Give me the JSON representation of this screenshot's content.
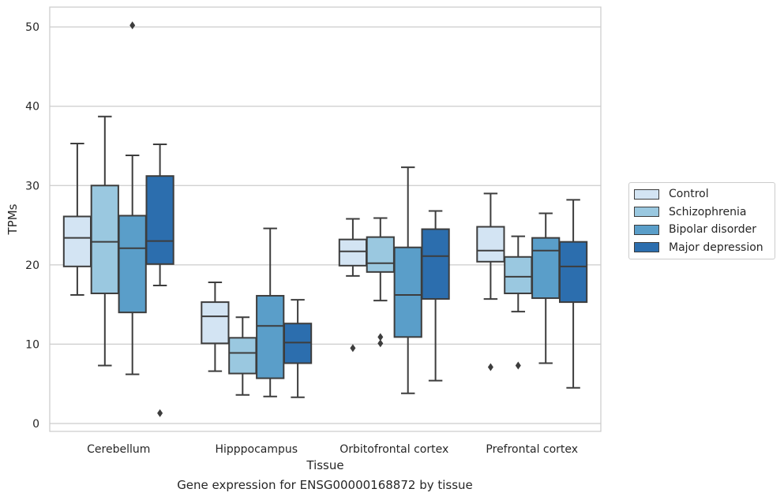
{
  "chart_data": {
    "type": "box",
    "title": "",
    "caption": "Gene expression for ENSG00000168872 by tissue",
    "xlabel": "Tissue",
    "ylabel": "TPMs",
    "ylim": [
      -1,
      52.5
    ],
    "yticks": [
      0,
      10,
      20,
      30,
      40,
      50
    ],
    "grid": "horizontal",
    "legend_placement": "outside-right",
    "categories": [
      "Cerebellum",
      "Hipppocampus",
      "Orbitofrontal cortex",
      "Prefrontal cortex"
    ],
    "series": [
      {
        "name": "Control",
        "color": "#d3e4f3",
        "boxes": [
          {
            "whislo": 16.2,
            "q1": 19.8,
            "med": 23.4,
            "q3": 26.1,
            "whishi": 35.3,
            "fliers": []
          },
          {
            "whislo": 6.6,
            "q1": 10.1,
            "med": 13.5,
            "q3": 15.3,
            "whishi": 17.8,
            "fliers": []
          },
          {
            "whislo": 18.6,
            "q1": 19.9,
            "med": 21.7,
            "q3": 23.2,
            "whishi": 25.8,
            "fliers": [
              9.5
            ]
          },
          {
            "whislo": 15.7,
            "q1": 20.4,
            "med": 21.8,
            "q3": 24.8,
            "whishi": 29.0,
            "fliers": [
              7.1
            ]
          }
        ]
      },
      {
        "name": "Schizophrenia",
        "color": "#9ac8e0",
        "boxes": [
          {
            "whislo": 7.3,
            "q1": 16.4,
            "med": 22.9,
            "q3": 30.0,
            "whishi": 38.7,
            "fliers": []
          },
          {
            "whislo": 3.6,
            "q1": 6.3,
            "med": 8.9,
            "q3": 10.8,
            "whishi": 13.4,
            "fliers": []
          },
          {
            "whislo": 15.5,
            "q1": 19.1,
            "med": 20.2,
            "q3": 23.5,
            "whishi": 25.9,
            "fliers": [
              10.1,
              10.9
            ]
          },
          {
            "whislo": 14.1,
            "q1": 16.4,
            "med": 18.5,
            "q3": 21.0,
            "whishi": 23.6,
            "fliers": [
              7.3
            ]
          }
        ]
      },
      {
        "name": "Bipolar disorder",
        "color": "#5a9ec9",
        "boxes": [
          {
            "whislo": 6.2,
            "q1": 14.0,
            "med": 22.1,
            "q3": 26.2,
            "whishi": 33.8,
            "fliers": [
              50.2
            ]
          },
          {
            "whislo": 3.4,
            "q1": 5.7,
            "med": 12.3,
            "q3": 16.1,
            "whishi": 24.6,
            "fliers": []
          },
          {
            "whislo": 3.8,
            "q1": 10.9,
            "med": 16.2,
            "q3": 22.2,
            "whishi": 32.3,
            "fliers": []
          },
          {
            "whislo": 7.6,
            "q1": 15.8,
            "med": 21.8,
            "q3": 23.4,
            "whishi": 26.5,
            "fliers": []
          }
        ]
      },
      {
        "name": "Major depression",
        "color": "#2c6eae",
        "boxes": [
          {
            "whislo": 17.4,
            "q1": 20.1,
            "med": 23.0,
            "q3": 31.2,
            "whishi": 35.2,
            "fliers": [
              1.3
            ]
          },
          {
            "whislo": 3.3,
            "q1": 7.6,
            "med": 10.2,
            "q3": 12.6,
            "whishi": 15.6,
            "fliers": []
          },
          {
            "whislo": 5.4,
            "q1": 15.7,
            "med": 21.1,
            "q3": 24.5,
            "whishi": 26.8,
            "fliers": []
          },
          {
            "whislo": 4.5,
            "q1": 15.3,
            "med": 19.8,
            "q3": 22.9,
            "whishi": 28.2,
            "fliers": []
          }
        ]
      }
    ]
  }
}
